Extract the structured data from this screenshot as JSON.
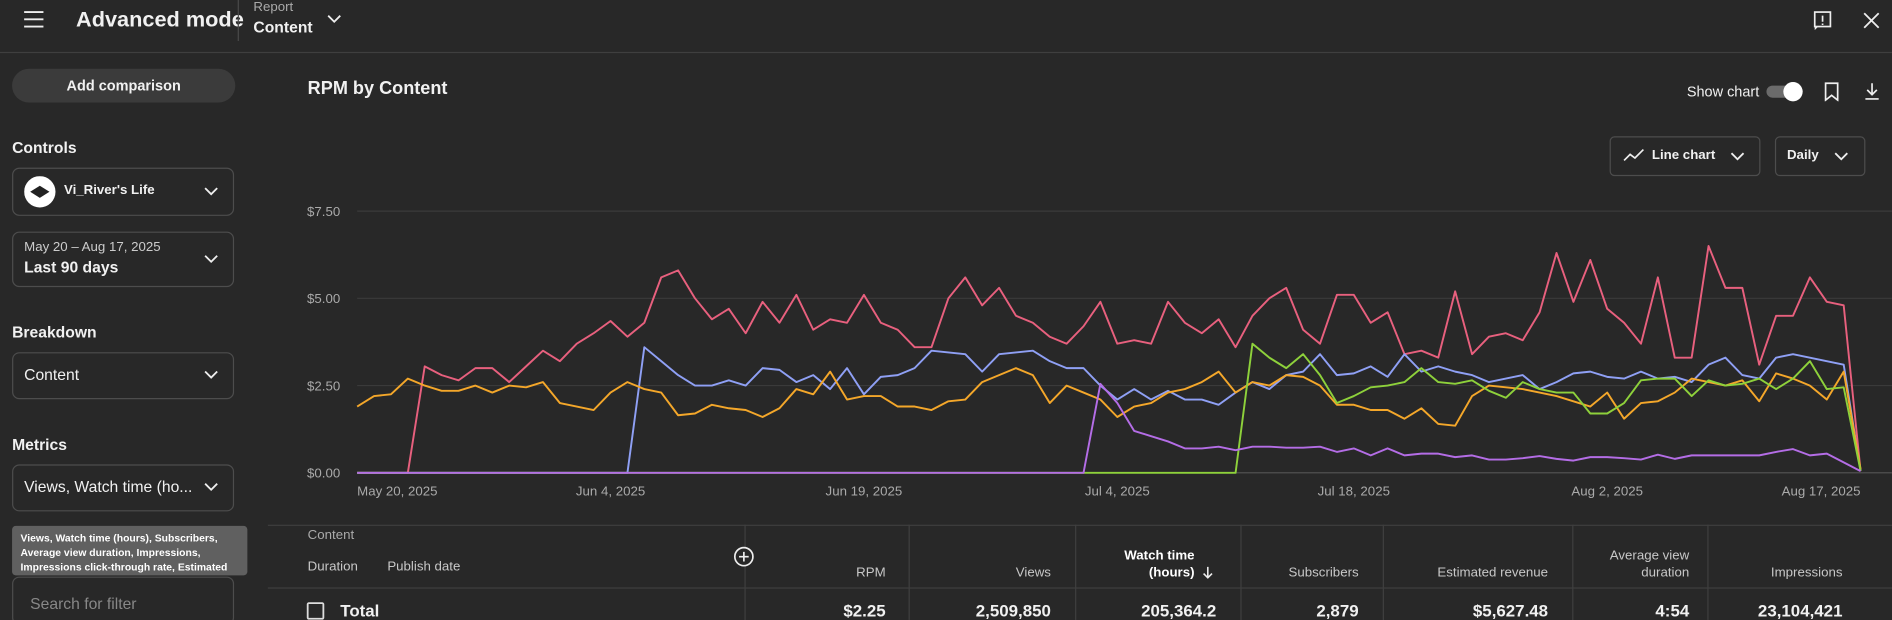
{
  "header": {
    "title": "Advanced mode",
    "report_label": "Report",
    "report_value": "Content"
  },
  "sidebar": {
    "add_comparison": "Add comparison",
    "controls": "Controls",
    "channel": "Vi_River's Life",
    "date_range": "May 20 – Aug 17, 2025",
    "date_preset": "Last 90 days",
    "breakdown": "Breakdown",
    "breakdown_value": "Content",
    "metrics": "Metrics",
    "metrics_value": "Views, Watch time (ho...",
    "metrics_tooltip": "Views, Watch time (hours), Subscribers, Average view duration, Impressions, Impressions click-through rate, Estimated revenue, and RPM",
    "search_placeholder": "Search for filter"
  },
  "chart_controls": {
    "show_chart": "Show chart",
    "chart_type": "Line chart",
    "interval": "Daily"
  },
  "chart_data": {
    "type": "line",
    "title": "RPM by Content",
    "categories": [
      "May 20, 2025",
      null,
      null,
      null,
      null,
      null,
      null,
      null,
      null,
      null,
      null,
      null,
      null,
      null,
      null,
      "Jun 4, 2025",
      null,
      null,
      null,
      null,
      null,
      null,
      null,
      null,
      null,
      null,
      null,
      null,
      null,
      null,
      "Jun 19, 2025",
      null,
      null,
      null,
      null,
      null,
      null,
      null,
      null,
      null,
      null,
      null,
      null,
      null,
      null,
      "Jul 4, 2025",
      null,
      null,
      null,
      null,
      null,
      null,
      null,
      null,
      null,
      null,
      null,
      null,
      null,
      "Jul 18, 2025",
      null,
      null,
      null,
      null,
      null,
      null,
      null,
      null,
      null,
      null,
      null,
      null,
      null,
      null,
      "Aug 2, 2025",
      null,
      null,
      null,
      null,
      null,
      null,
      null,
      null,
      null,
      null,
      null,
      null,
      null,
      null,
      "Aug 17, 2025"
    ],
    "series": [
      {
        "color": "#e8607e",
        "values": [
          0,
          0,
          0,
          0,
          3.05,
          2.8,
          2.65,
          3.0,
          3.0,
          2.6,
          3.05,
          3.5,
          3.2,
          3.7,
          4.0,
          4.35,
          3.9,
          4.3,
          5.6,
          5.8,
          5.0,
          4.4,
          4.7,
          4.0,
          4.9,
          4.3,
          5.1,
          4.1,
          4.4,
          4.3,
          5.1,
          4.3,
          4.1,
          3.6,
          3.6,
          5.0,
          5.6,
          4.8,
          5.3,
          4.5,
          4.3,
          3.9,
          3.7,
          4.2,
          4.9,
          3.7,
          3.8,
          3.7,
          4.9,
          4.3,
          4.0,
          4.4,
          3.6,
          4.5,
          5.0,
          5.3,
          4.1,
          3.7,
          5.1,
          5.1,
          4.3,
          4.6,
          3.4,
          3.5,
          3.3,
          5.2,
          3.4,
          3.9,
          4.0,
          3.8,
          4.6,
          6.3,
          4.9,
          6.1,
          4.7,
          4.3,
          3.7,
          5.6,
          3.3,
          3.3,
          6.5,
          5.3,
          5.3,
          3.1,
          4.5,
          4.5,
          5.6,
          4.9,
          4.8,
          0.05
        ]
      },
      {
        "color": "#8fa0f5",
        "values": [
          0,
          0,
          0,
          0,
          0,
          0,
          0,
          0,
          0,
          0,
          0,
          0,
          0,
          0,
          0,
          0,
          0,
          3.6,
          3.2,
          2.8,
          2.5,
          2.5,
          2.65,
          2.5,
          3.0,
          2.95,
          2.6,
          2.8,
          2.4,
          3.0,
          2.25,
          2.75,
          2.8,
          3.0,
          3.5,
          3.45,
          3.4,
          2.9,
          3.4,
          3.45,
          3.5,
          3.2,
          3.0,
          3.0,
          2.5,
          2.1,
          2.4,
          2.1,
          2.35,
          2.1,
          2.1,
          1.95,
          2.3,
          2.6,
          2.4,
          2.8,
          2.9,
          3.4,
          2.8,
          2.85,
          3.05,
          2.75,
          3.4,
          2.9,
          3.05,
          2.9,
          2.8,
          2.6,
          2.7,
          2.8,
          2.4,
          2.6,
          2.85,
          2.9,
          2.75,
          2.7,
          2.9,
          2.7,
          2.75,
          2.6,
          3.1,
          3.3,
          2.8,
          2.7,
          3.3,
          3.4,
          3.3,
          3.2,
          3.1,
          0.05
        ]
      },
      {
        "color": "#f4a72a",
        "values": [
          1.9,
          2.2,
          2.25,
          2.7,
          2.5,
          2.35,
          2.35,
          2.5,
          2.3,
          2.5,
          2.45,
          2.6,
          2.0,
          1.9,
          1.8,
          2.3,
          2.6,
          2.4,
          2.3,
          1.65,
          1.7,
          1.95,
          1.85,
          1.8,
          1.6,
          1.85,
          2.4,
          2.25,
          2.9,
          2.1,
          2.2,
          2.2,
          1.9,
          1.9,
          1.8,
          2.05,
          2.1,
          2.6,
          2.8,
          3.0,
          2.8,
          2.0,
          2.5,
          2.3,
          2.1,
          1.6,
          1.9,
          2.0,
          2.3,
          2.4,
          2.6,
          2.9,
          2.3,
          2.6,
          2.5,
          2.8,
          2.75,
          2.5,
          1.95,
          1.95,
          1.8,
          1.8,
          1.55,
          1.85,
          1.4,
          1.35,
          2.2,
          2.5,
          2.45,
          2.4,
          2.3,
          2.2,
          2.05,
          1.9,
          2.3,
          1.55,
          2.0,
          2.05,
          2.3,
          2.7,
          2.6,
          2.5,
          2.65,
          2.05,
          2.85,
          2.7,
          2.5,
          2.1,
          2.9,
          0.1
        ]
      },
      {
        "color": "#8ed13b",
        "values": [
          0,
          0,
          0,
          0,
          0,
          0,
          0,
          0,
          0,
          0,
          0,
          0,
          0,
          0,
          0,
          0,
          0,
          0,
          0,
          0,
          0,
          0,
          0,
          0,
          0,
          0,
          0,
          0,
          0,
          0,
          0,
          0,
          0,
          0,
          0,
          0,
          0,
          0,
          0,
          0,
          0,
          0,
          0,
          0,
          0,
          0,
          0,
          0,
          0,
          0,
          0,
          0,
          0,
          3.7,
          3.3,
          3.0,
          3.4,
          2.8,
          2.0,
          2.2,
          2.45,
          2.5,
          2.6,
          3.0,
          2.6,
          2.55,
          2.65,
          2.35,
          2.15,
          2.6,
          2.4,
          2.3,
          2.3,
          1.7,
          1.7,
          2.0,
          2.65,
          2.7,
          2.7,
          2.2,
          2.65,
          2.5,
          2.55,
          2.7,
          2.4,
          2.7,
          3.2,
          2.4,
          2.45,
          0.05
        ]
      },
      {
        "color": "#b46de6",
        "values": [
          0,
          0,
          0,
          0,
          0,
          0,
          0,
          0,
          0,
          0,
          0,
          0,
          0,
          0,
          0,
          0,
          0,
          0,
          0,
          0,
          0,
          0,
          0,
          0,
          0,
          0,
          0,
          0,
          0,
          0,
          0,
          0,
          0,
          0,
          0,
          0,
          0,
          0,
          0,
          0,
          0,
          0,
          0,
          0,
          2.55,
          2.0,
          1.2,
          1.05,
          0.9,
          0.7,
          0.7,
          0.75,
          0.65,
          0.75,
          0.75,
          0.72,
          0.72,
          0.75,
          0.6,
          0.7,
          0.5,
          0.7,
          0.5,
          0.55,
          0.55,
          0.45,
          0.5,
          0.38,
          0.38,
          0.42,
          0.48,
          0.4,
          0.35,
          0.45,
          0.45,
          0.42,
          0.38,
          0.52,
          0.4,
          0.5,
          0.5,
          0.5,
          0.5,
          0.5,
          0.6,
          0.68,
          0.5,
          0.55,
          0.3,
          0.05
        ]
      }
    ],
    "ylim": [
      0,
      7.5
    ],
    "yticks": [
      {
        "value": 0,
        "label": "$0.00"
      },
      {
        "value": 2.5,
        "label": "$2.50"
      },
      {
        "value": 5,
        "label": "$5.00"
      },
      {
        "value": 7.5,
        "label": "$7.50"
      }
    ],
    "grid": true
  },
  "table": {
    "left_columns": [
      "Content",
      "Duration",
      "Publish date"
    ],
    "metric_columns": [
      "RPM",
      "Views",
      "Watch time (hours)",
      "Subscribers",
      "Estimated revenue",
      "Average view duration",
      "Impressions"
    ],
    "total": {
      "label": "Total",
      "values": [
        "$2.25",
        "2,509,850",
        "205,364.2",
        "2,879",
        "$5,627.48",
        "4:54",
        "23,104,421"
      ]
    }
  }
}
